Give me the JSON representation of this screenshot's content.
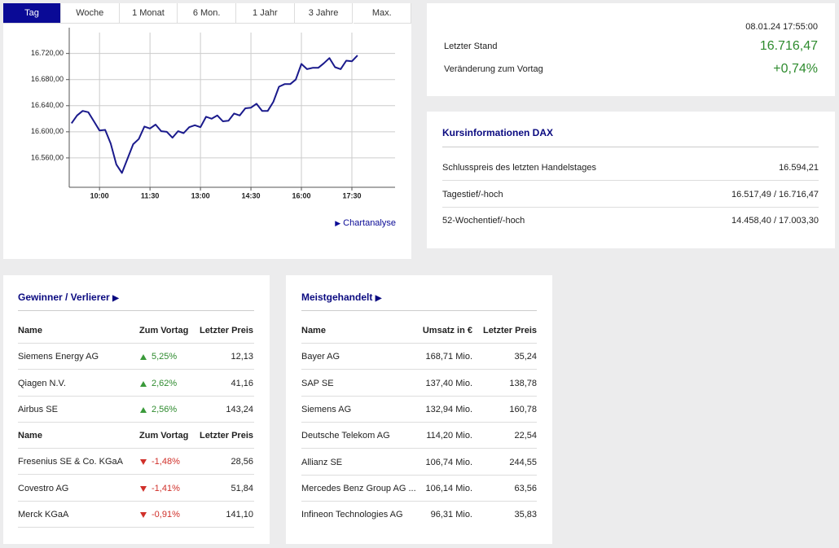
{
  "tabs": [
    "Tag",
    "Woche",
    "1 Monat",
    "6 Mon.",
    "1 Jahr",
    "3 Jahre",
    "Max."
  ],
  "chart_data": {
    "type": "line",
    "x": [
      "09:10",
      "09:20",
      "09:30",
      "09:40",
      "09:50",
      "10:00",
      "10:10",
      "10:20",
      "10:30",
      "10:40",
      "10:50",
      "11:00",
      "11:10",
      "11:20",
      "11:30",
      "11:40",
      "11:50",
      "12:00",
      "12:10",
      "12:20",
      "12:30",
      "12:40",
      "12:50",
      "13:00",
      "13:10",
      "13:20",
      "13:30",
      "13:40",
      "13:50",
      "14:00",
      "14:10",
      "14:20",
      "14:30",
      "14:40",
      "14:50",
      "15:00",
      "15:10",
      "15:20",
      "15:30",
      "15:40",
      "15:50",
      "16:00",
      "16:10",
      "16:20",
      "16:30",
      "16:40",
      "16:50",
      "17:00",
      "17:10",
      "17:20",
      "17:30",
      "17:40"
    ],
    "series": [
      {
        "color": "#1a1a8c",
        "values": [
          16613,
          16625,
          16632,
          16630,
          16616,
          16602,
          16603,
          16582,
          16550,
          16537,
          16559,
          16581,
          16589,
          16608,
          16605,
          16611,
          16601,
          16600,
          16591,
          16601,
          16598,
          16607,
          16610,
          16607,
          16623,
          16620,
          16625,
          16616,
          16617,
          16628,
          16625,
          16636,
          16637,
          16643,
          16632,
          16632,
          16646,
          16669,
          16673,
          16673,
          16680,
          16704,
          16696,
          16698,
          16698,
          16705,
          16713,
          16699,
          16696,
          16709,
          16708,
          16717
        ]
      }
    ],
    "xlim": [
      "09:06",
      "18:47"
    ],
    "xticks": [
      "10:00",
      "11:30",
      "13:00",
      "14:30",
      "16:00",
      "17:30"
    ],
    "ylim": [
      16515,
      16752
    ],
    "yticks": [
      {
        "value": 16560,
        "label": "16.560,00"
      },
      {
        "value": 16600,
        "label": "16.600,00"
      },
      {
        "value": 16640,
        "label": "16.640,00"
      },
      {
        "value": 16680,
        "label": "16.680,00"
      },
      {
        "value": 16720,
        "label": "16.720,00"
      }
    ],
    "grid": true
  },
  "chart_link": "Chartanalyse",
  "quote": {
    "timestamp": "08.01.24 17:55:00",
    "last_label": "Letzter Stand",
    "last_value": "16.716,47",
    "change_label": "Veränderung zum Vortag",
    "change_value": "+0,74%"
  },
  "kursinfo": {
    "title": "Kursinformationen DAX",
    "rows": [
      [
        "Schlusspreis des letzten Handelstages",
        "16.594,21"
      ],
      [
        "Tagestief/-hoch",
        "16.517,49 / 16.716,47"
      ],
      [
        "52-Wochentief/-hoch",
        "14.458,40 / 17.003,30"
      ]
    ]
  },
  "winners_losers": {
    "title": "Gewinner / Verlierer",
    "gainers": {
      "columns": [
        "Name",
        "Zum Vortag",
        "Letzter Preis"
      ],
      "rows": [
        [
          "Siemens Energy AG",
          "5,25%",
          "12,13"
        ],
        [
          "Qiagen N.V.",
          "2,62%",
          "41,16"
        ],
        [
          "Airbus SE",
          "2,56%",
          "143,24"
        ]
      ]
    },
    "losers": {
      "columns": [
        "Name",
        "Zum Vortag",
        "Letzter Preis"
      ],
      "rows": [
        [
          "Fresenius SE & Co. KGaA",
          "-1,48%",
          "28,56"
        ],
        [
          "Covestro AG",
          "-1,41%",
          "51,84"
        ],
        [
          "Merck KGaA",
          "-0,91%",
          "141,10"
        ]
      ]
    }
  },
  "most_traded": {
    "title": "Meistgehandelt",
    "columns": [
      "Name",
      "Umsatz in €",
      "Letzter Preis"
    ],
    "rows": [
      [
        "Bayer AG",
        "168,71 Mio.",
        "35,24"
      ],
      [
        "SAP SE",
        "137,40 Mio.",
        "138,78"
      ],
      [
        "Siemens AG",
        "132,94 Mio.",
        "160,78"
      ],
      [
        "Deutsche Telekom AG",
        "114,20 Mio.",
        "22,54"
      ],
      [
        "Allianz SE",
        "106,74 Mio.",
        "244,55"
      ],
      [
        "Mercedes Benz Group AG ...",
        "106,14 Mio.",
        "63,56"
      ],
      [
        "Infineon Technologies AG",
        "96,31 Mio.",
        "35,83"
      ]
    ]
  }
}
